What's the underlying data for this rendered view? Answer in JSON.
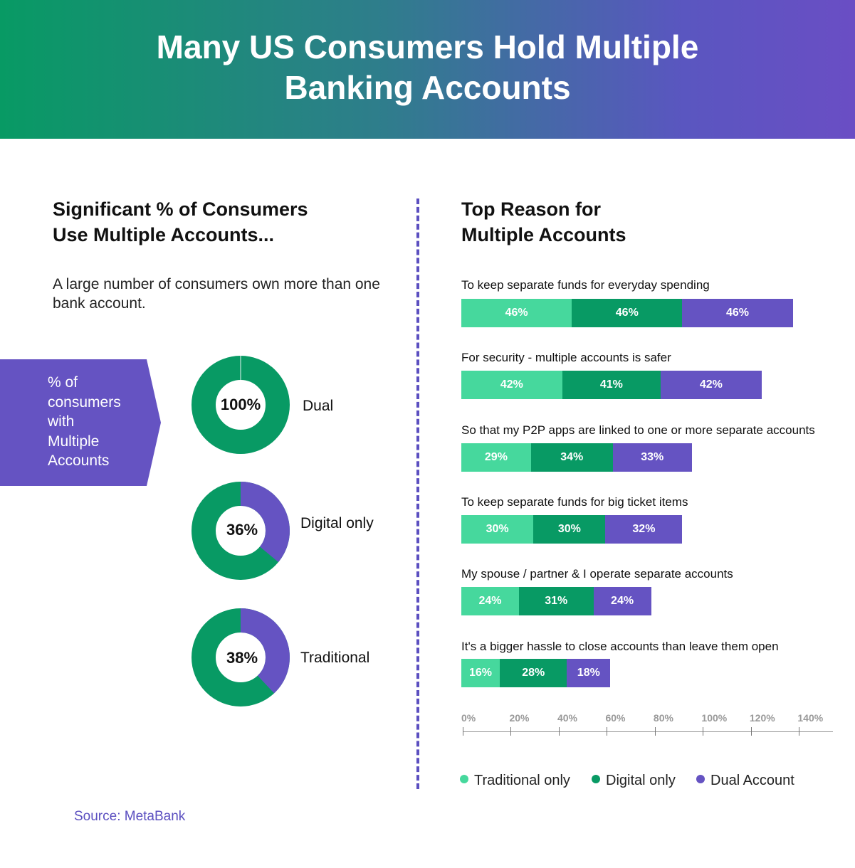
{
  "title": "Many US Consumers Hold Multiple Banking Accounts",
  "title_lines": [
    "Many US Consumers Hold Multiple",
    "Banking Accounts"
  ],
  "left": {
    "heading_lines": [
      "Significant % of Consumers",
      "Use Multiple Accounts..."
    ],
    "description": "A large number of consumers own more than one bank account.",
    "callout_lines": [
      "% of",
      "consumers",
      "with",
      "Multiple",
      "Accounts"
    ],
    "donuts": [
      {
        "label": "Dual",
        "value_label": "100%",
        "value": 100
      },
      {
        "label": "Digital only",
        "value_label": "36%",
        "value": 36
      },
      {
        "label": "Traditional",
        "value_label": "38%",
        "value": 38
      }
    ]
  },
  "right": {
    "heading_lines": [
      "Top Reason for",
      "Multiple Accounts"
    ]
  },
  "colors": {
    "traditional": "#46d89d",
    "digital": "#089a64",
    "dual": "#6553c2",
    "header_start": "#089a64",
    "header_end": "#6a4ec4"
  },
  "chart_data": {
    "type": "bar",
    "orientation": "horizontal",
    "stacked": true,
    "categories": [
      "To keep separate funds for everyday spending",
      "For security - multiple accounts is safer",
      "So that my P2P apps are linked to one or more separate accounts",
      "To keep separate funds for big ticket items",
      "My spouse / partner & I operate separate accounts",
      "It's a bigger hassle to close accounts than leave them open"
    ],
    "series": [
      {
        "name": "Traditional only",
        "values": [
          46,
          42,
          29,
          30,
          24,
          16
        ],
        "labels": [
          "46%",
          "42%",
          "29%",
          "30%",
          "24%",
          "16%"
        ]
      },
      {
        "name": "Digital only",
        "values": [
          46,
          41,
          34,
          30,
          31,
          28
        ],
        "labels": [
          "46%",
          "41%",
          "34%",
          "30%",
          "31%",
          "28%"
        ]
      },
      {
        "name": "Dual Account",
        "values": [
          46,
          42,
          33,
          32,
          24,
          18
        ],
        "labels": [
          "46%",
          "42%",
          "33%",
          "32%",
          "24%",
          "18%"
        ]
      }
    ],
    "xlim": [
      0,
      150
    ],
    "xticks": [
      "0%",
      "20%",
      "40%",
      "60%",
      "80%",
      "100%",
      "120%",
      "140%"
    ],
    "legend_position": "bottom"
  },
  "source": "Source: MetaBank"
}
